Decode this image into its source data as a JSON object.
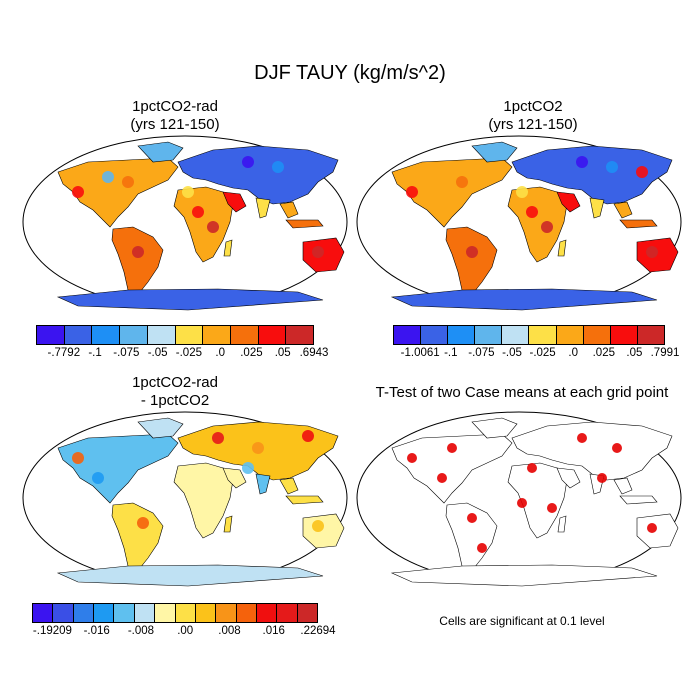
{
  "main_title": "DJF TAUY (kg/m/s^2)",
  "panels": [
    {
      "id": "rad",
      "title_line1": "1pctCO2-rad",
      "title_line2": "(yrs 121-150)"
    },
    {
      "id": "ctl",
      "title_line1": "1pctCO2",
      "title_line2": "(yrs 121-150)"
    },
    {
      "id": "diff",
      "title_line1": "1pctCO2-rad",
      "title_line2": "- 1pctCO2"
    },
    {
      "id": "ttest",
      "title_line1": "T-Test of two Case means at each grid point",
      "title_line2": ""
    }
  ],
  "colorbars": {
    "rad": {
      "colors": [
        "#3b14f0",
        "#3a62e6",
        "#1e8ff5",
        "#5fb5ec",
        "#bfe1f3",
        "#fde047",
        "#fba818",
        "#f5700c",
        "#f80d0d",
        "#cc2828"
      ],
      "labels": [
        "-.7792",
        "-.1",
        "-.075",
        "-.05",
        "-.025",
        ".0",
        ".025",
        ".05",
        ".6943"
      ]
    },
    "ctl": {
      "colors": [
        "#3b14f0",
        "#3a62e6",
        "#1e8ff5",
        "#5fb5ec",
        "#bfe1f3",
        "#fde047",
        "#fba818",
        "#f5700c",
        "#f80d0d",
        "#cc2828"
      ],
      "labels": [
        "-1.0061",
        "-.1",
        "-.075",
        "-.05",
        "-.025",
        ".0",
        ".025",
        ".05",
        ".7991"
      ]
    },
    "diff": {
      "colors": [
        "#3b14f0",
        "#3a4fe6",
        "#2f7eea",
        "#1e9af2",
        "#5fc0ef",
        "#bfe1f3",
        "#fff6a6",
        "#fde047",
        "#fbc21a",
        "#f89418",
        "#f5620c",
        "#f00f0f",
        "#e51a1a",
        "#cc2828"
      ],
      "labels": [
        "-.19209",
        "-.016",
        "-.008",
        ".00",
        ".008",
        ".016",
        ".22694"
      ]
    }
  },
  "significance_note": "Cells are significant at 0.1 level",
  "significance_color": "#e60000"
}
